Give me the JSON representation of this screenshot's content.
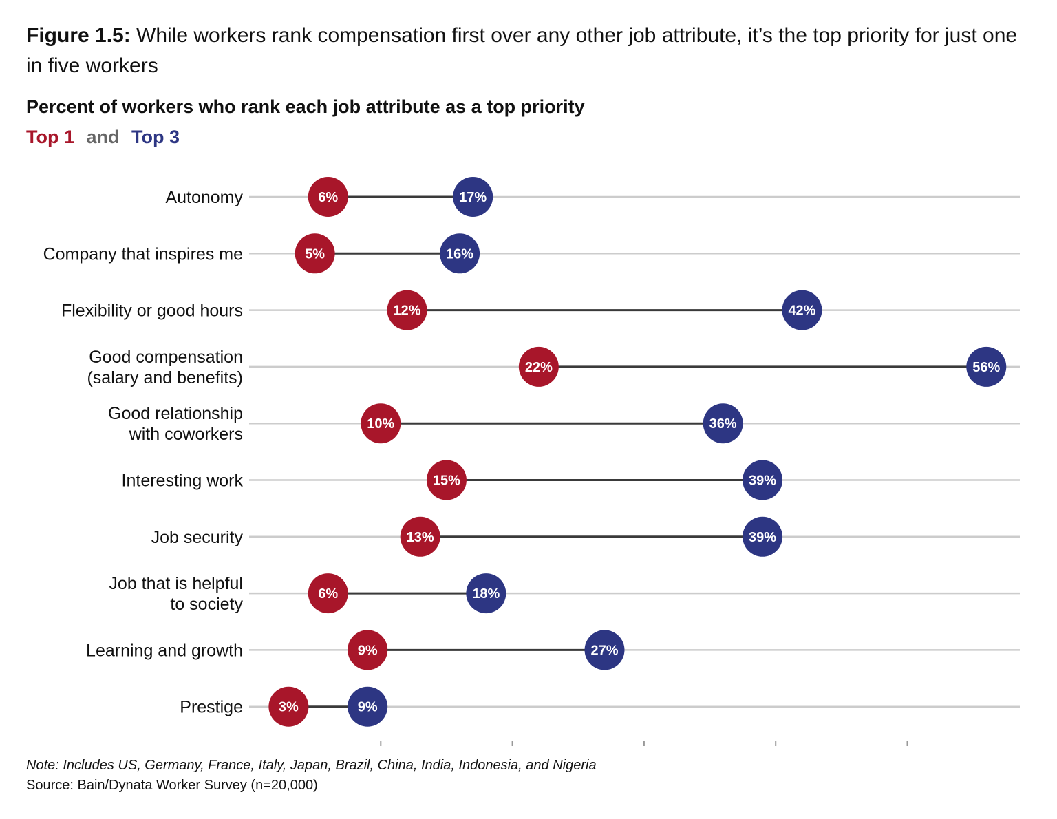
{
  "header": {
    "title_lead": "Figure 1.5:",
    "title_rest": "While workers rank compensation first over any other job attribute, it’s the top priority for just one in five workers",
    "subtitle": "Percent of workers who rank each job attribute as a top priority",
    "legend_top1": "Top 1",
    "legend_and": "and",
    "legend_top3": "Top 3"
  },
  "footer": {
    "note": "Note: Includes US, Germany, France, Italy, Japan, Brazil, China, India, Indonesia, and Nigeria",
    "source": "Source: Bain/Dynata Worker Survey (n=20,000)"
  },
  "colors": {
    "top1": "#a8162a",
    "top3": "#2d3683",
    "connector": "#3a3a3a",
    "gridline": "#cccccc",
    "and_text": "#666666"
  },
  "chart_data": {
    "type": "dumbbell",
    "xlim": [
      0,
      57
    ],
    "series": [
      {
        "name": "Top 1",
        "values": [
          6,
          5,
          12,
          22,
          10,
          15,
          13,
          6,
          9,
          3
        ]
      },
      {
        "name": "Top 3",
        "values": [
          17,
          16,
          42,
          56,
          36,
          39,
          39,
          18,
          27,
          9
        ]
      }
    ],
    "categories": [
      [
        "Autonomy"
      ],
      [
        "Company that inspires me"
      ],
      [
        "Flexibility or good hours"
      ],
      [
        "Good compensation",
        "(salary and benefits)"
      ],
      [
        "Good relationship",
        "with coworkers"
      ],
      [
        "Interesting work"
      ],
      [
        "Job security"
      ],
      [
        "Job that is helpful",
        "to society"
      ],
      [
        "Learning and growth"
      ],
      [
        "Prestige"
      ]
    ],
    "value_labels_top1": [
      "6%",
      "5%",
      "12%",
      "22%",
      "10%",
      "15%",
      "13%",
      "6%",
      "9%",
      "3%"
    ],
    "value_labels_top3": [
      "17%",
      "16%",
      "42%",
      "56%",
      "36%",
      "39%",
      "39%",
      "18%",
      "27%",
      "9%"
    ],
    "x_ticks": [
      10,
      20,
      30,
      40,
      50
    ],
    "grid": true
  }
}
